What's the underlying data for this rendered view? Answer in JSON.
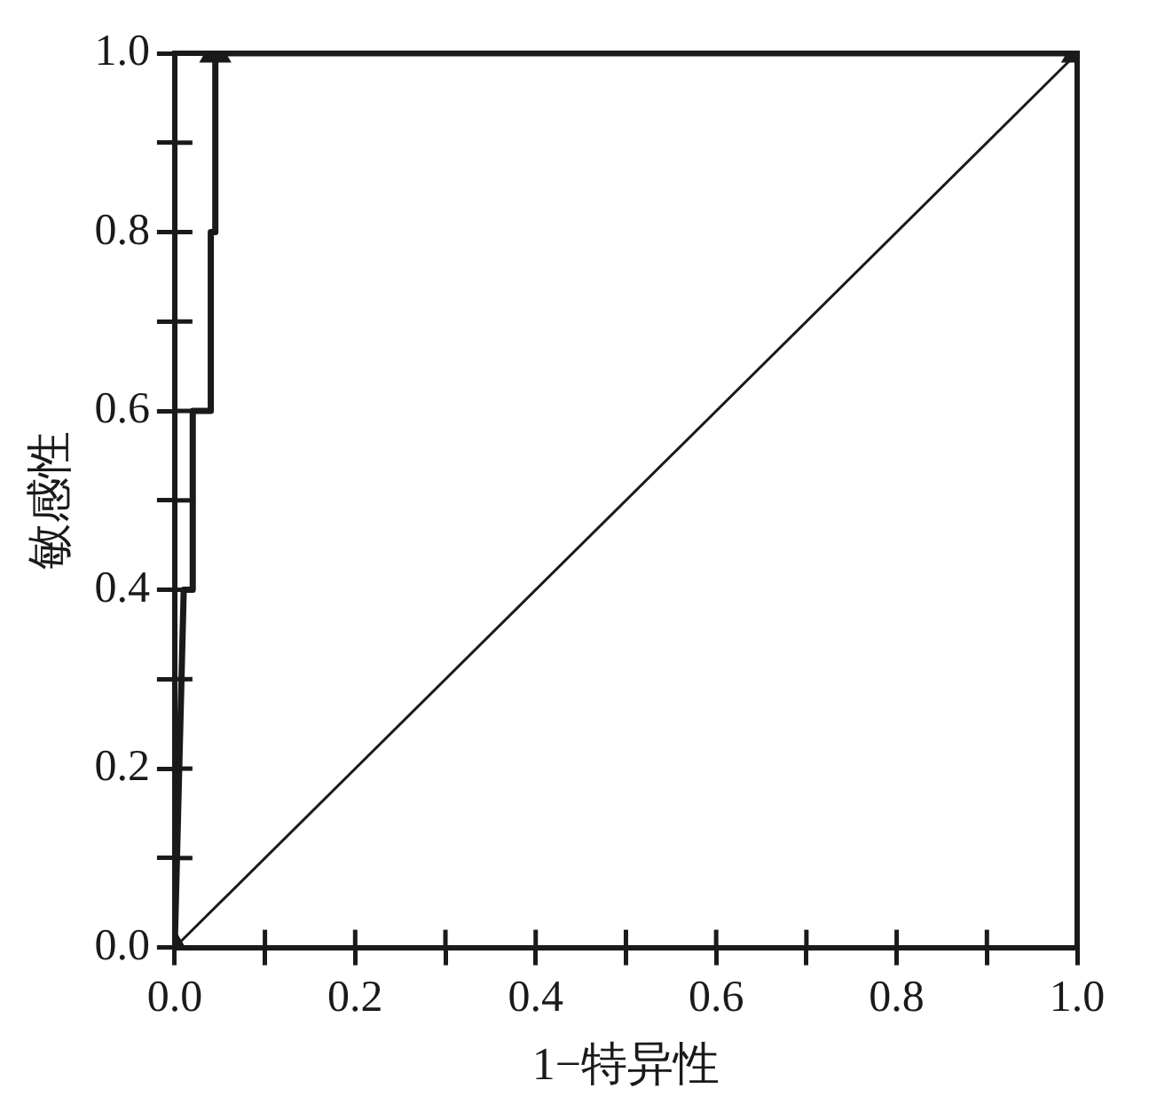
{
  "chart_data": {
    "type": "line",
    "xlabel": "1−特异性",
    "ylabel": "敏感性",
    "xlim": [
      0,
      1
    ],
    "ylim": [
      0,
      1
    ],
    "xticks": [
      {
        "value": 0,
        "label": "0.0"
      },
      {
        "value": 0.1,
        "label": null
      },
      {
        "value": 0.2,
        "label": "0.2"
      },
      {
        "value": 0.3,
        "label": null
      },
      {
        "value": 0.4,
        "label": "0.4"
      },
      {
        "value": 0.5,
        "label": null
      },
      {
        "value": 0.6,
        "label": "0.6"
      },
      {
        "value": 0.7,
        "label": null
      },
      {
        "value": 0.8,
        "label": "0.8"
      },
      {
        "value": 0.9,
        "label": null
      },
      {
        "value": 1,
        "label": "1.0"
      }
    ],
    "yticks": [
      {
        "value": 0,
        "label": "0.0"
      },
      {
        "value": 0.1,
        "label": null
      },
      {
        "value": 0.2,
        "label": "0.2"
      },
      {
        "value": 0.3,
        "label": null
      },
      {
        "value": 0.4,
        "label": "0.4"
      },
      {
        "value": 0.5,
        "label": null
      },
      {
        "value": 0.6,
        "label": "0.6"
      },
      {
        "value": 0.7,
        "label": null
      },
      {
        "value": 0.8,
        "label": "0.8"
      },
      {
        "value": 0.9,
        "label": null
      },
      {
        "value": 1,
        "label": "1.0"
      }
    ],
    "grid": false,
    "legend": false,
    "series": [
      {
        "color": "#1a1a1a",
        "marker": "none",
        "x": [
          0,
          0.01,
          0.02,
          0.02,
          0.04,
          0.04,
          0.045,
          0.045,
          1
        ],
        "values": [
          0,
          0.4,
          0.4,
          0.6,
          0.6,
          0.8,
          0.8,
          1,
          1
        ]
      },
      {
        "color": "#1a1a1a",
        "marker": "none",
        "x": [
          0,
          1
        ],
        "values": [
          0,
          1
        ]
      },
      {
        "type": "scatter",
        "color": "#1a1a1a",
        "marker": "triangle",
        "x": [
          0,
          0.045,
          1
        ],
        "values": [
          0,
          1,
          1
        ]
      }
    ]
  }
}
